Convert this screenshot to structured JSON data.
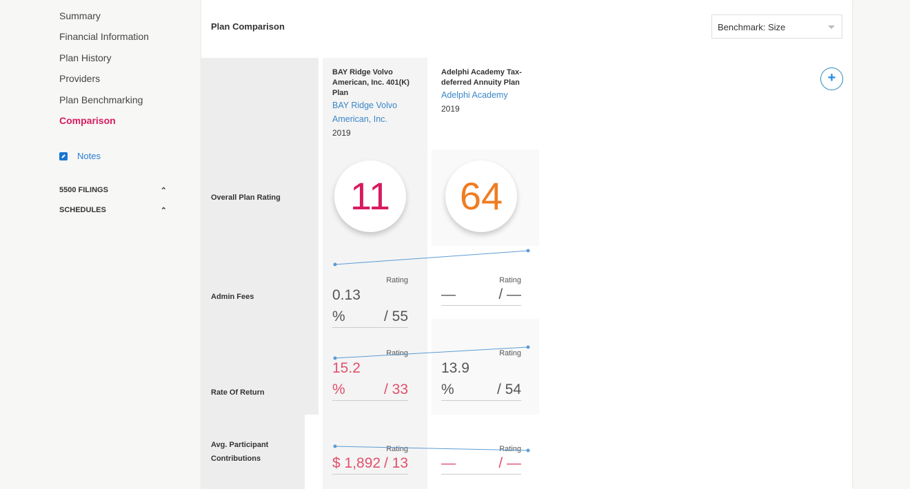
{
  "sidebar": {
    "items": [
      {
        "label": "Summary"
      },
      {
        "label": "Financial Information"
      },
      {
        "label": "Plan History"
      },
      {
        "label": "Providers"
      },
      {
        "label": "Plan Benchmarking"
      },
      {
        "label": "Comparison",
        "active": true
      }
    ],
    "notes_label": "Notes",
    "sections": [
      {
        "label": "5500 FILINGS",
        "icon": "chevron-up-icon"
      },
      {
        "label": "SCHEDULES",
        "icon": "chevron-up-icon"
      }
    ]
  },
  "main": {
    "title": "Plan Comparison",
    "benchmark_select": "Benchmark: Size",
    "add_icon": "plus-circle-icon",
    "row_labels": {
      "rating": "Overall Plan Rating",
      "admin": "Admin Fees",
      "ror": "Rate Of Return",
      "contrib": "Avg. Participant Contributions"
    },
    "rating_label": "Rating",
    "plans": [
      {
        "name": "BAY Ridge Volvo American, Inc. 401(K) Plan",
        "sponsor": "BAY Ridge Volvo American, Inc.",
        "year": "2019",
        "rating": "11",
        "rating_color": "#d81b60",
        "admin_value": "0.13",
        "admin_unit": "%",
        "admin_rating": "/ 55",
        "ror_value": "15.2",
        "ror_unit": "%",
        "ror_rating": "/ 33",
        "contrib_value": "$ 1,892",
        "contrib_rating": "/ 13"
      },
      {
        "name": "Adelphi Academy Tax-deferred Annuity Plan",
        "sponsor": "Adelphi Academy",
        "year": "2019",
        "rating": "64",
        "rating_color": "#ef7d22",
        "admin_value": "—",
        "admin_rating": "/ —",
        "ror_value": "13.9",
        "ror_unit": "%",
        "ror_rating": "/ 54",
        "contrib_value": "—",
        "contrib_rating": "/ —"
      }
    ],
    "colors": {
      "accent": "#d81b60",
      "link": "#3a86c8",
      "negative": "#e0506a"
    }
  }
}
